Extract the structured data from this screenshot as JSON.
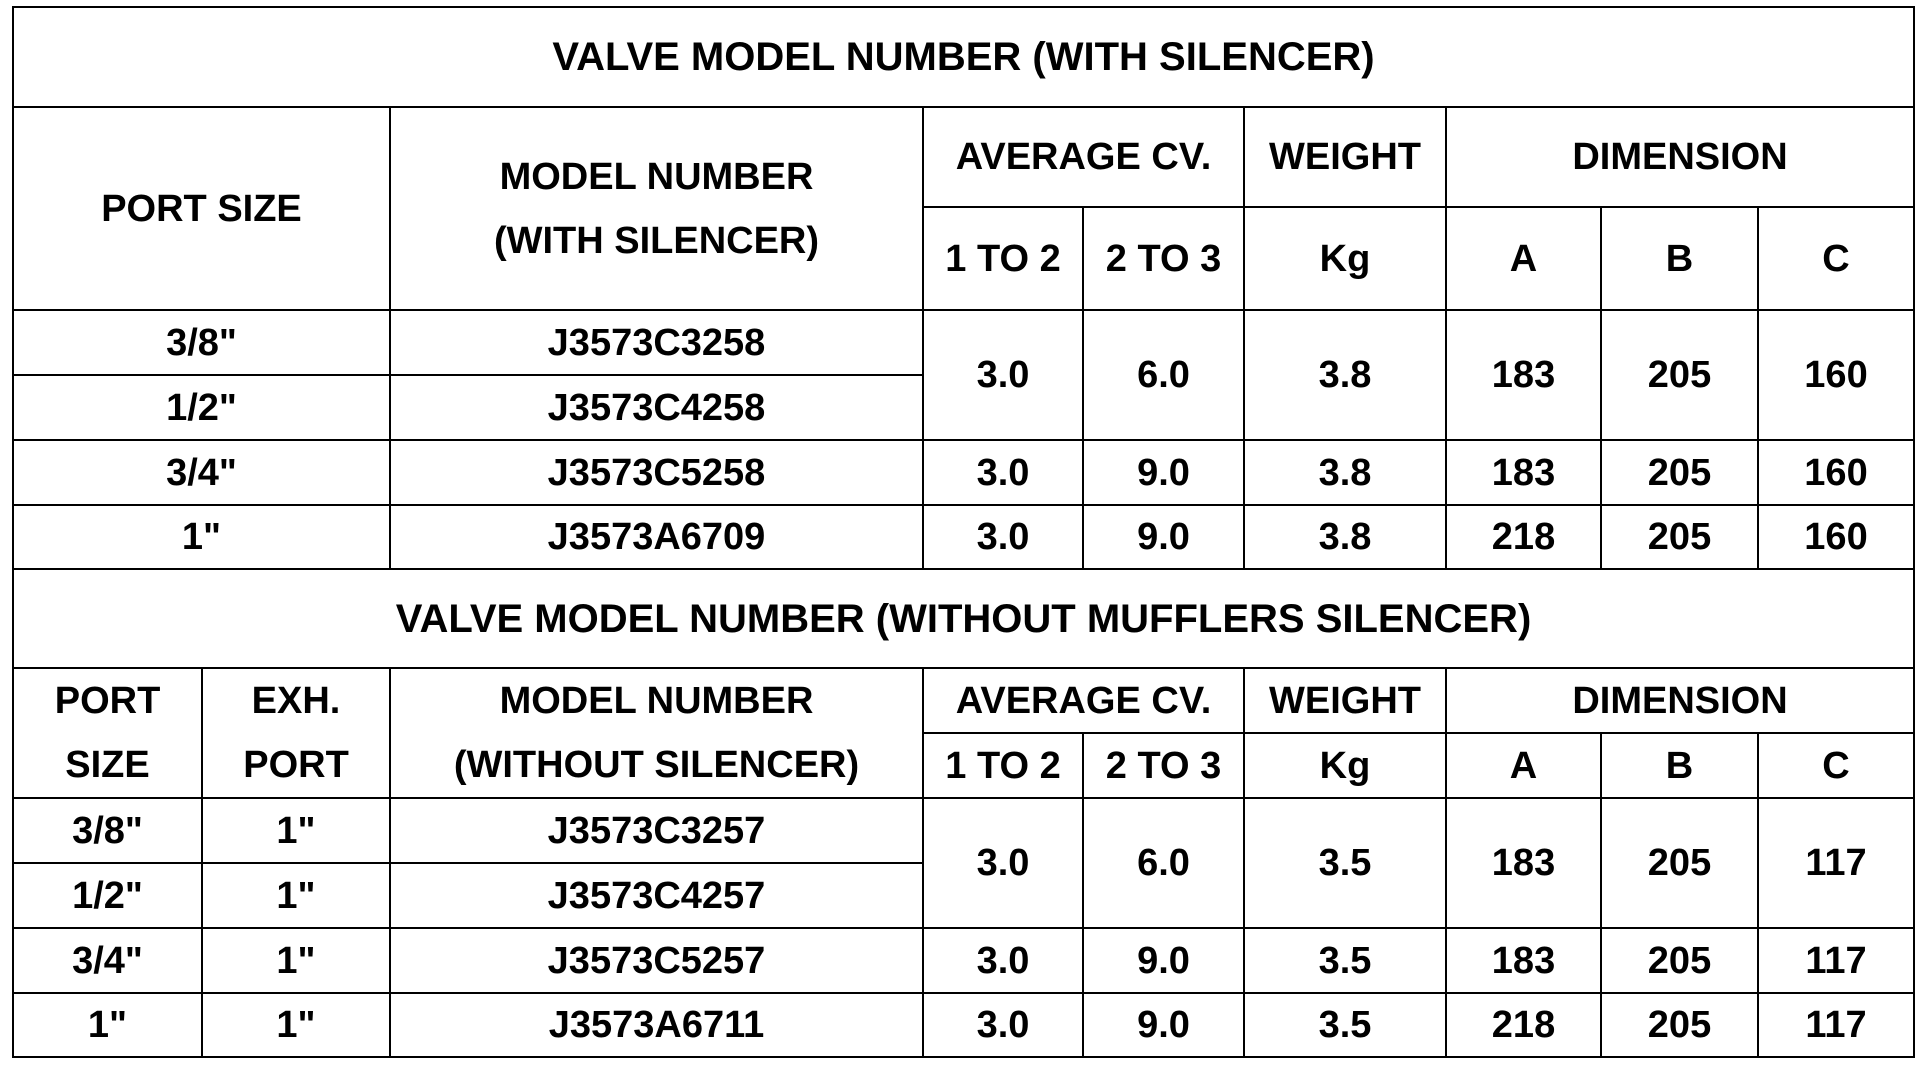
{
  "sections": [
    {
      "title": "VALVE MODEL NUMBER (WITH SILENCER)",
      "headers": {
        "port_size": [
          "PORT SIZE"
        ],
        "model_number": [
          "MODEL NUMBER",
          "(WITH SILENCER)"
        ],
        "average_cv": "AVERAGE CV.",
        "cv_columns": [
          "1 TO 2",
          "2 TO 3"
        ],
        "weight": "WEIGHT",
        "weight_unit": "Kg",
        "dimension": "DIMENSION",
        "dimension_columns": [
          "A",
          "B",
          "C"
        ]
      },
      "groups": [
        {
          "models": [
            {
              "port_size": "3/8\"",
              "model_number": "J3573C3258"
            },
            {
              "port_size": "1/2\"",
              "model_number": "J3573C4258"
            }
          ],
          "specs": [
            "3.0",
            "6.0",
            "3.8",
            "183",
            "205",
            "160"
          ]
        },
        {
          "models": [
            {
              "port_size": "3/4\"",
              "model_number": "J3573C5258"
            }
          ],
          "specs": [
            "3.0",
            "9.0",
            "3.8",
            "183",
            "205",
            "160"
          ]
        },
        {
          "models": [
            {
              "port_size": "1\"",
              "model_number": "J3573A6709"
            }
          ],
          "specs": [
            "3.0",
            "9.0",
            "3.8",
            "218",
            "205",
            "160"
          ]
        }
      ]
    },
    {
      "title": "VALVE MODEL NUMBER (WITHOUT MUFFLERS SILENCER)",
      "headers": {
        "port_size": [
          "PORT",
          "SIZE"
        ],
        "exh_port": [
          "EXH.",
          "PORT"
        ],
        "model_number": [
          "MODEL NUMBER",
          "(WITHOUT SILENCER)"
        ],
        "average_cv": "AVERAGE CV.",
        "cv_columns": [
          "1 TO 2",
          "2 TO 3"
        ],
        "weight": "WEIGHT",
        "weight_unit": "Kg",
        "dimension": "DIMENSION",
        "dimension_columns": [
          "A",
          "B",
          "C"
        ]
      },
      "groups": [
        {
          "models": [
            {
              "port_size": "3/8\"",
              "exh_port": "1\"",
              "model_number": "J3573C3257"
            },
            {
              "port_size": "1/2\"",
              "exh_port": "1\"",
              "model_number": "J3573C4257"
            }
          ],
          "specs": [
            "3.0",
            "6.0",
            "3.5",
            "183",
            "205",
            "117"
          ]
        },
        {
          "models": [
            {
              "port_size": "3/4\"",
              "exh_port": "1\"",
              "model_number": "J3573C5257"
            }
          ],
          "specs": [
            "3.0",
            "9.0",
            "3.5",
            "183",
            "205",
            "117"
          ]
        },
        {
          "models": [
            {
              "port_size": "1\"",
              "exh_port": "1\"",
              "model_number": "J3573A6711"
            }
          ],
          "specs": [
            "3.0",
            "9.0",
            "3.5",
            "218",
            "205",
            "117"
          ]
        }
      ]
    }
  ]
}
